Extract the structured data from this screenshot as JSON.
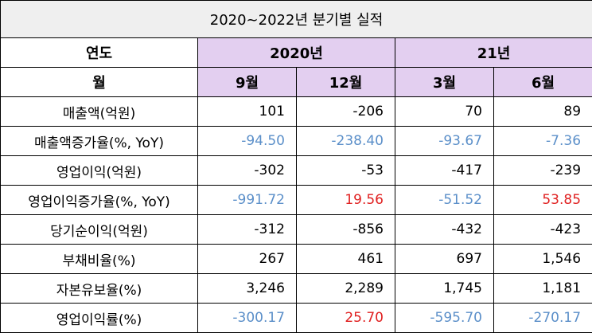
{
  "title": "2020~2022년 분기별 실적",
  "header": {
    "year_label": "연도",
    "year_2020": "2020년",
    "year_21": "21년",
    "month_label": "월",
    "months": [
      "9월",
      "12월",
      "3월",
      "6월"
    ]
  },
  "colors": {
    "negative_blue": "#5b8fc9",
    "positive_red": "#e02020",
    "header_purple": "#e3cff0"
  },
  "rows": [
    {
      "label": "매출액(억원)",
      "values": [
        "101",
        "-206",
        "70",
        "89"
      ],
      "styles": [
        "",
        "",
        "",
        ""
      ]
    },
    {
      "label": "매출액증가율(%, YoY)",
      "values": [
        "-94.50",
        "-238.40",
        "-93.67",
        "-7.36"
      ],
      "styles": [
        "blue",
        "blue",
        "blue",
        "blue"
      ]
    },
    {
      "label": "영업이익(억원)",
      "values": [
        "-302",
        "-53",
        "-417",
        "-239"
      ],
      "styles": [
        "",
        "",
        "",
        ""
      ]
    },
    {
      "label": "영업이익증가율(%, YoY)",
      "values": [
        "-991.72",
        "19.56",
        "-51.52",
        "53.85"
      ],
      "styles": [
        "blue",
        "red",
        "blue",
        "red"
      ]
    },
    {
      "label": "당기순이익(억원)",
      "values": [
        "-312",
        "-856",
        "-432",
        "-423"
      ],
      "styles": [
        "",
        "",
        "",
        ""
      ]
    },
    {
      "label": "부채비율(%)",
      "values": [
        "267",
        "461",
        "697",
        "1,546"
      ],
      "styles": [
        "",
        "",
        "",
        ""
      ]
    },
    {
      "label": "자본유보율(%)",
      "values": [
        "3,246",
        "2,289",
        "1,745",
        "1,181"
      ],
      "styles": [
        "",
        "",
        "",
        ""
      ]
    },
    {
      "label": "영업이익률(%)",
      "values": [
        "-300.17",
        "25.70",
        "-595.70",
        "-270.17"
      ],
      "styles": [
        "blue",
        "red",
        "blue",
        "blue"
      ]
    }
  ]
}
